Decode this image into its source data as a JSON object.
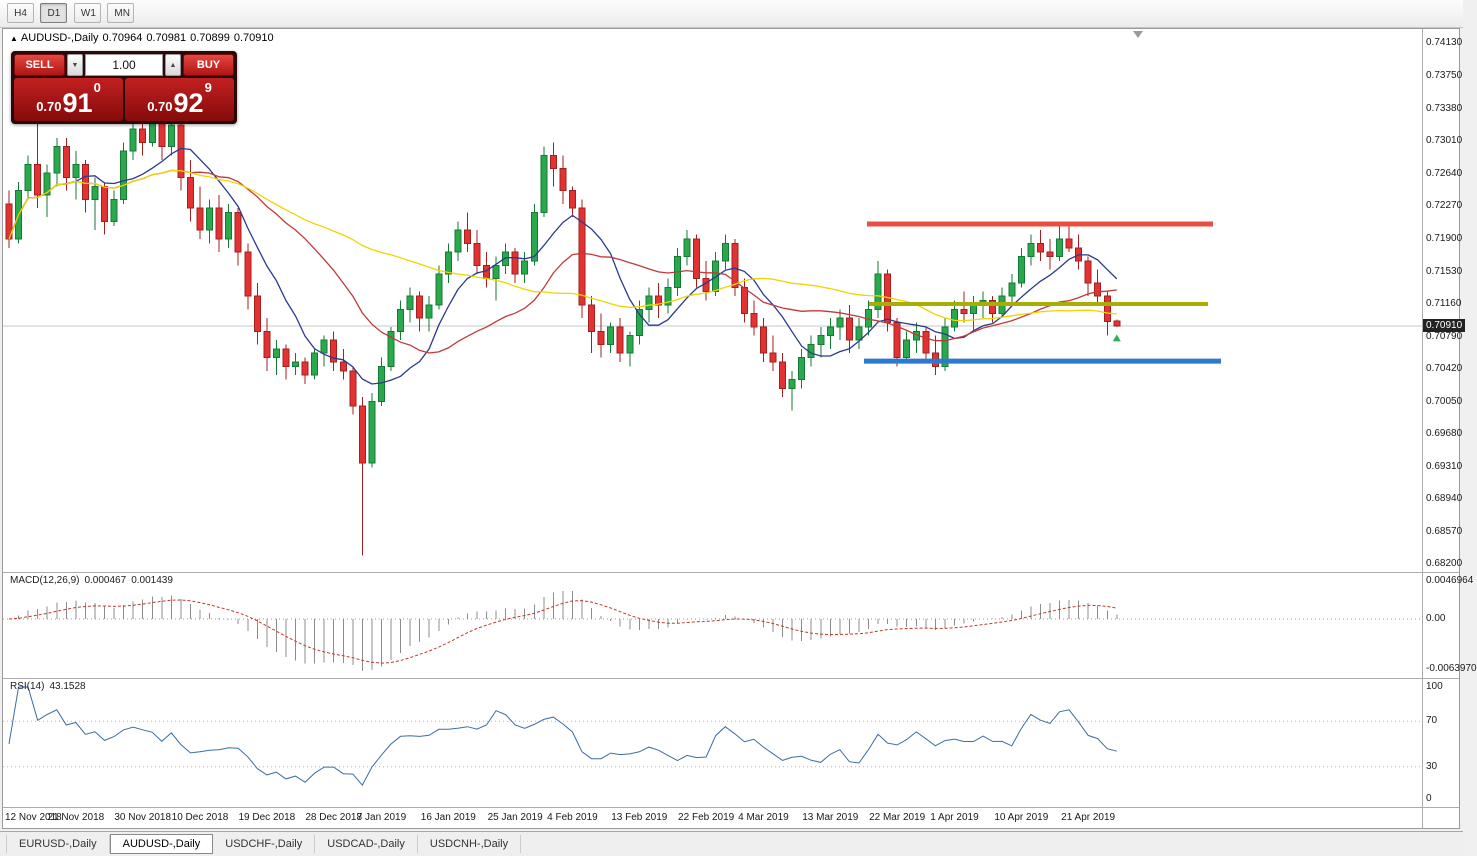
{
  "toolbar": {
    "timeframes": [
      {
        "label": "H4",
        "active": false
      },
      {
        "label": "D1",
        "active": true
      },
      {
        "label": "W1",
        "active": false
      },
      {
        "label": "MN",
        "active": false
      }
    ]
  },
  "chart": {
    "title": {
      "symbol": "AUDUSD-,Daily",
      "open": "0.70964",
      "high": "0.70981",
      "low": "0.70899",
      "close": "0.70910"
    },
    "current_price": "0.70910",
    "price_axis": [
      "0.74130",
      "0.73750",
      "0.73380",
      "0.73010",
      "0.72640",
      "0.72270",
      "0.71900",
      "0.71530",
      "0.71160",
      "0.70790",
      "0.70420",
      "0.70050",
      "0.69680",
      "0.69310",
      "0.68940",
      "0.68570",
      "0.68200"
    ]
  },
  "trade_panel": {
    "sell_label": "SELL",
    "buy_label": "BUY",
    "volume": "1.00",
    "sell_price": {
      "small": "0.70",
      "big": "91",
      "sup": "0"
    },
    "buy_price": {
      "small": "0.70",
      "big": "92",
      "sup": "9"
    }
  },
  "indicators": {
    "macd": {
      "name": "MACD(12,26,9)",
      "value_main": "0.000467",
      "value_signal": "0.001439",
      "axis_labels": [
        "0.0046964",
        "0.00",
        "-0.0063970"
      ],
      "fast": 12,
      "slow": 26,
      "signal": 9
    },
    "rsi": {
      "name": "RSI(14)",
      "value": "43.1528",
      "axis_labels": [
        "100",
        "70",
        "30",
        "0"
      ],
      "period": 14,
      "levels": [
        70,
        30
      ]
    }
  },
  "tabs": [
    {
      "label": "EURUSD-,Daily",
      "active": false
    },
    {
      "label": "AUDUSD-,Daily",
      "active": true
    },
    {
      "label": "USDCHF-,Daily",
      "active": false
    },
    {
      "label": "USDCAD-,Daily",
      "active": false
    },
    {
      "label": "USDCNH-,Daily",
      "active": false
    }
  ],
  "colors": {
    "bull": "#2AA84C",
    "bull_edge": "#157a35",
    "bear": "#E23232",
    "bear_edge": "#a32020",
    "ma_fast": "#2B3A8F",
    "ma_mid": "#C03A3A",
    "ma_slow": "#EFD500",
    "macd_hist": "#8c8c8c",
    "macd_signal": "#C0392B",
    "rsi_line": "#3A6EA5",
    "resistance": "#EA4E42",
    "pivot": "#A9AE06",
    "support": "#2E79D0",
    "price_line": "#c9c9c9",
    "arrow": "#2FB050",
    "shift_marker": "#9a9a9a"
  },
  "chart_data": {
    "type": "candlestick",
    "symbol": "AUDUSD",
    "period": "Daily",
    "ylim": [
      0.6811,
      0.7429
    ],
    "candles": [
      [
        0.723,
        0.7245,
        0.718,
        0.719
      ],
      [
        0.719,
        0.7255,
        0.7185,
        0.7245
      ],
      [
        0.7245,
        0.7285,
        0.7235,
        0.7275
      ],
      [
        0.7275,
        0.7335,
        0.7225,
        0.724
      ],
      [
        0.724,
        0.7275,
        0.7215,
        0.7265
      ],
      [
        0.7265,
        0.7305,
        0.725,
        0.7295
      ],
      [
        0.7295,
        0.7305,
        0.7245,
        0.726
      ],
      [
        0.726,
        0.729,
        0.7235,
        0.7275
      ],
      [
        0.7275,
        0.728,
        0.722,
        0.7235
      ],
      [
        0.7235,
        0.726,
        0.72,
        0.725
      ],
      [
        0.725,
        0.7255,
        0.7195,
        0.721
      ],
      [
        0.721,
        0.7245,
        0.7205,
        0.7235
      ],
      [
        0.7235,
        0.73,
        0.723,
        0.729
      ],
      [
        0.729,
        0.7325,
        0.728,
        0.7315
      ],
      [
        0.7315,
        0.733,
        0.7285,
        0.73
      ],
      [
        0.73,
        0.734,
        0.7295,
        0.733
      ],
      [
        0.733,
        0.7335,
        0.728,
        0.7295
      ],
      [
        0.7295,
        0.7335,
        0.7285,
        0.732
      ],
      [
        0.732,
        0.7325,
        0.7245,
        0.726
      ],
      [
        0.726,
        0.728,
        0.721,
        0.7225
      ],
      [
        0.7225,
        0.725,
        0.719,
        0.72
      ],
      [
        0.72,
        0.7235,
        0.7185,
        0.7225
      ],
      [
        0.7225,
        0.724,
        0.7175,
        0.719
      ],
      [
        0.719,
        0.723,
        0.718,
        0.722
      ],
      [
        0.722,
        0.7225,
        0.716,
        0.7175
      ],
      [
        0.7175,
        0.7185,
        0.711,
        0.7125
      ],
      [
        0.7125,
        0.714,
        0.707,
        0.7085
      ],
      [
        0.7085,
        0.71,
        0.704,
        0.7055
      ],
      [
        0.7055,
        0.7075,
        0.7035,
        0.7065
      ],
      [
        0.7065,
        0.707,
        0.703,
        0.7045
      ],
      [
        0.7045,
        0.706,
        0.7035,
        0.705
      ],
      [
        0.705,
        0.7055,
        0.7025,
        0.7035
      ],
      [
        0.7035,
        0.7065,
        0.703,
        0.706
      ],
      [
        0.706,
        0.708,
        0.7045,
        0.7075
      ],
      [
        0.7075,
        0.7085,
        0.704,
        0.705
      ],
      [
        0.705,
        0.7065,
        0.703,
        0.704
      ],
      [
        0.704,
        0.7045,
        0.699,
        0.7
      ],
      [
        0.7,
        0.701,
        0.683,
        0.6935
      ],
      [
        0.6935,
        0.7015,
        0.693,
        0.7005
      ],
      [
        0.7005,
        0.7055,
        0.7,
        0.7045
      ],
      [
        0.7045,
        0.709,
        0.704,
        0.7085
      ],
      [
        0.7085,
        0.712,
        0.7075,
        0.711
      ],
      [
        0.711,
        0.7135,
        0.7095,
        0.7125
      ],
      [
        0.7125,
        0.713,
        0.7085,
        0.71
      ],
      [
        0.71,
        0.7125,
        0.7085,
        0.7115
      ],
      [
        0.7115,
        0.716,
        0.711,
        0.715
      ],
      [
        0.715,
        0.7185,
        0.714,
        0.7175
      ],
      [
        0.7175,
        0.721,
        0.7165,
        0.72
      ],
      [
        0.72,
        0.722,
        0.7175,
        0.7185
      ],
      [
        0.7185,
        0.72,
        0.715,
        0.716
      ],
      [
        0.716,
        0.7175,
        0.7135,
        0.7145
      ],
      [
        0.7145,
        0.717,
        0.712,
        0.716
      ],
      [
        0.716,
        0.7185,
        0.715,
        0.7175
      ],
      [
        0.7175,
        0.718,
        0.714,
        0.715
      ],
      [
        0.715,
        0.7175,
        0.714,
        0.7165
      ],
      [
        0.7165,
        0.723,
        0.716,
        0.722
      ],
      [
        0.722,
        0.7295,
        0.7215,
        0.7285
      ],
      [
        0.7285,
        0.73,
        0.725,
        0.727
      ],
      [
        0.727,
        0.7285,
        0.723,
        0.7245
      ],
      [
        0.7245,
        0.725,
        0.7215,
        0.7225
      ],
      [
        0.7225,
        0.7235,
        0.71,
        0.7115
      ],
      [
        0.7115,
        0.7125,
        0.706,
        0.7085
      ],
      [
        0.7085,
        0.7105,
        0.7055,
        0.707
      ],
      [
        0.707,
        0.7095,
        0.706,
        0.709
      ],
      [
        0.709,
        0.71,
        0.705,
        0.706
      ],
      [
        0.706,
        0.7085,
        0.7045,
        0.708
      ],
      [
        0.708,
        0.712,
        0.707,
        0.711
      ],
      [
        0.711,
        0.7135,
        0.7095,
        0.7125
      ],
      [
        0.7125,
        0.714,
        0.71,
        0.7115
      ],
      [
        0.7115,
        0.7145,
        0.7105,
        0.7135
      ],
      [
        0.7135,
        0.718,
        0.7125,
        0.717
      ],
      [
        0.717,
        0.72,
        0.716,
        0.719
      ],
      [
        0.719,
        0.7195,
        0.7135,
        0.7145
      ],
      [
        0.7145,
        0.7165,
        0.712,
        0.713
      ],
      [
        0.713,
        0.7175,
        0.7125,
        0.7165
      ],
      [
        0.7165,
        0.7195,
        0.7155,
        0.7185
      ],
      [
        0.7185,
        0.719,
        0.7125,
        0.7135
      ],
      [
        0.7135,
        0.7145,
        0.7095,
        0.7105
      ],
      [
        0.7105,
        0.712,
        0.708,
        0.709
      ],
      [
        0.709,
        0.71,
        0.705,
        0.706
      ],
      [
        0.706,
        0.708,
        0.704,
        0.705
      ],
      [
        0.705,
        0.706,
        0.701,
        0.702
      ],
      [
        0.702,
        0.704,
        0.6995,
        0.703
      ],
      [
        0.703,
        0.7065,
        0.702,
        0.7055
      ],
      [
        0.7055,
        0.708,
        0.7045,
        0.707
      ],
      [
        0.707,
        0.709,
        0.7055,
        0.708
      ],
      [
        0.708,
        0.71,
        0.7065,
        0.709
      ],
      [
        0.709,
        0.711,
        0.7075,
        0.71
      ],
      [
        0.71,
        0.7115,
        0.706,
        0.7075
      ],
      [
        0.7075,
        0.71,
        0.7065,
        0.709
      ],
      [
        0.709,
        0.712,
        0.708,
        0.711
      ],
      [
        0.711,
        0.7165,
        0.71,
        0.715
      ],
      [
        0.715,
        0.7155,
        0.7085,
        0.7095
      ],
      [
        0.7095,
        0.71,
        0.7045,
        0.7055
      ],
      [
        0.7055,
        0.7085,
        0.705,
        0.7075
      ],
      [
        0.7075,
        0.7095,
        0.706,
        0.7085
      ],
      [
        0.7085,
        0.709,
        0.705,
        0.706
      ],
      [
        0.706,
        0.708,
        0.7035,
        0.7045
      ],
      [
        0.7045,
        0.71,
        0.704,
        0.709
      ],
      [
        0.709,
        0.712,
        0.7085,
        0.711
      ],
      [
        0.711,
        0.713,
        0.7095,
        0.7105
      ],
      [
        0.7105,
        0.7125,
        0.7085,
        0.7115
      ],
      [
        0.7115,
        0.713,
        0.71,
        0.712
      ],
      [
        0.712,
        0.7125,
        0.7095,
        0.7105
      ],
      [
        0.7105,
        0.7135,
        0.71,
        0.7125
      ],
      [
        0.7125,
        0.715,
        0.7115,
        0.714
      ],
      [
        0.714,
        0.718,
        0.7135,
        0.717
      ],
      [
        0.717,
        0.7195,
        0.716,
        0.7185
      ],
      [
        0.7185,
        0.72,
        0.7165,
        0.7175
      ],
      [
        0.7175,
        0.719,
        0.7155,
        0.717
      ],
      [
        0.717,
        0.7205,
        0.7165,
        0.719
      ],
      [
        0.719,
        0.721,
        0.7175,
        0.718
      ],
      [
        0.718,
        0.7195,
        0.7155,
        0.7165
      ],
      [
        0.7165,
        0.717,
        0.7125,
        0.714
      ],
      [
        0.714,
        0.7155,
        0.7115,
        0.7125
      ],
      [
        0.7125,
        0.713,
        0.708,
        0.7096
      ],
      [
        0.70964,
        0.70981,
        0.70899,
        0.7091
      ]
    ],
    "x_labels": [
      {
        "i": 0,
        "label": "12 Nov 2018"
      },
      {
        "i": 7,
        "label": "21 Nov 2018"
      },
      {
        "i": 14,
        "label": "30 Nov 2018"
      },
      {
        "i": 20,
        "label": "10 Dec 2018"
      },
      {
        "i": 27,
        "label": "19 Dec 2018"
      },
      {
        "i": 34,
        "label": "28 Dec 2018"
      },
      {
        "i": 39,
        "label": "7 Jan 2019"
      },
      {
        "i": 46,
        "label": "16 Jan 2019"
      },
      {
        "i": 53,
        "label": "25 Jan 2019"
      },
      {
        "i": 59,
        "label": "4 Feb 2019"
      },
      {
        "i": 66,
        "label": "13 Feb 2019"
      },
      {
        "i": 73,
        "label": "22 Feb 2019"
      },
      {
        "i": 79,
        "label": "4 Mar 2019"
      },
      {
        "i": 86,
        "label": "13 Mar 2019"
      },
      {
        "i": 93,
        "label": "22 Mar 2019"
      },
      {
        "i": 99,
        "label": "1 Apr 2019"
      },
      {
        "i": 106,
        "label": "10 Apr 2019"
      },
      {
        "i": 113,
        "label": "21 Apr 2019"
      }
    ],
    "moving_averages": [
      {
        "period": 8,
        "color_key": "ma_fast"
      },
      {
        "period": 20,
        "color_key": "ma_mid"
      },
      {
        "period": 40,
        "color_key": "ma_slow"
      }
    ],
    "hlines": [
      {
        "name": "resistance-line",
        "price": 0.7207,
        "x1": 864,
        "x2": 1210,
        "width": 5,
        "color_key": "resistance"
      },
      {
        "name": "mid-line",
        "price": 0.7116,
        "x1": 866,
        "x2": 1205,
        "width": 4,
        "color_key": "pivot"
      },
      {
        "name": "support-line",
        "price": 0.7051,
        "x1": 861,
        "x2": 1218,
        "width": 5,
        "color_key": "support"
      }
    ],
    "last_close": 0.7091,
    "arrow_marker": {
      "index": 116,
      "price": 0.7086
    },
    "shift_marker_x": 1135
  }
}
